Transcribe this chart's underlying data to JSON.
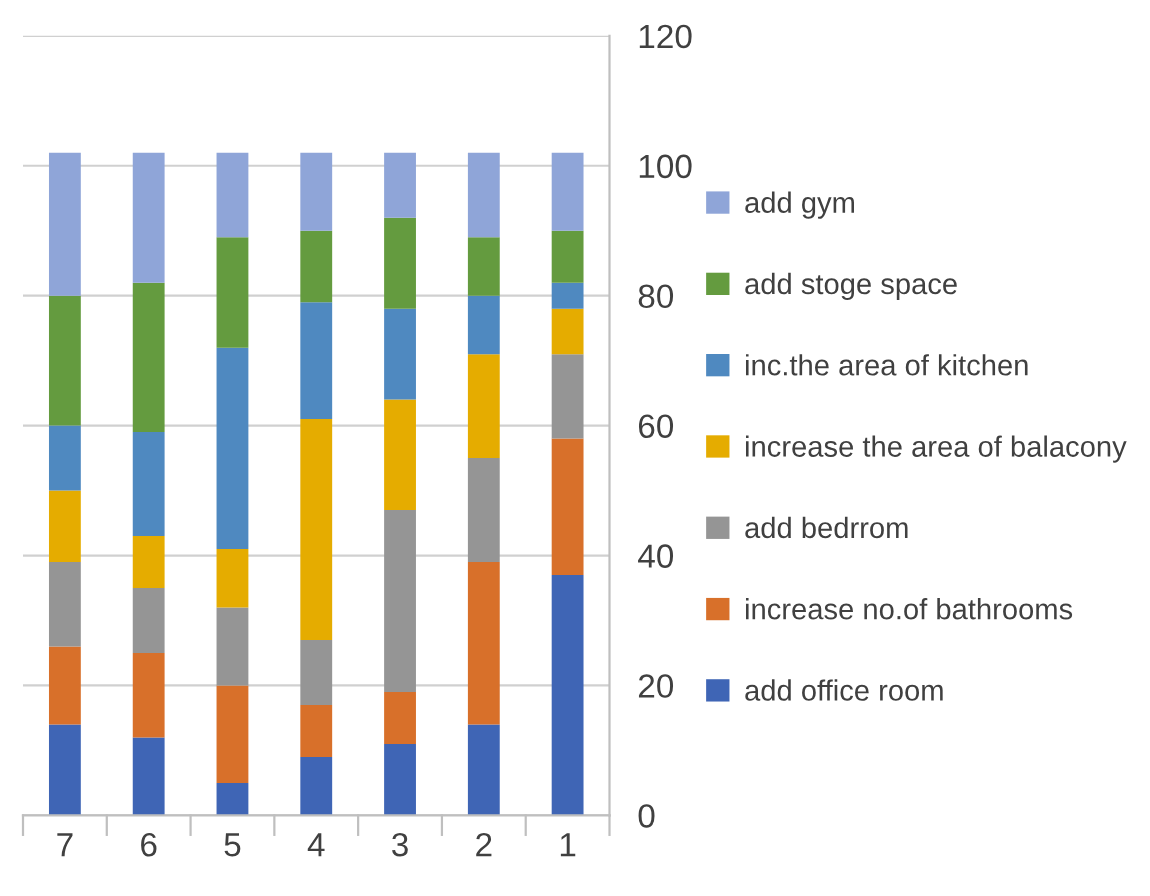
{
  "chart_data": {
    "type": "bar",
    "stacked": true,
    "categories": [
      "7",
      "6",
      "5",
      "4",
      "3",
      "2",
      "1"
    ],
    "series": [
      {
        "name": "add office room",
        "color": "#3f65b5",
        "values": [
          14,
          12,
          5,
          9,
          11,
          14,
          37
        ]
      },
      {
        "name": "increase no.of bathrooms",
        "color": "#d8702a",
        "values": [
          12,
          13,
          15,
          8,
          8,
          25,
          21
        ]
      },
      {
        "name": "add bedrrom",
        "color": "#959595",
        "values": [
          13,
          10,
          12,
          10,
          28,
          16,
          13
        ]
      },
      {
        "name": "increase the area of balacony",
        "color": "#e5ac00",
        "values": [
          11,
          8,
          9,
          34,
          17,
          16,
          7
        ]
      },
      {
        "name": "inc.the area of kitchen",
        "color": "#4f89c0",
        "values": [
          10,
          16,
          31,
          18,
          14,
          9,
          4
        ]
      },
      {
        "name": "add stoge space",
        "color": "#649b3f",
        "values": [
          20,
          23,
          17,
          11,
          14,
          9,
          8
        ]
      },
      {
        "name": "add gym",
        "color": "#8fa5d8",
        "values": [
          22,
          20,
          13,
          12,
          10,
          13,
          12
        ]
      }
    ],
    "ylim": [
      0,
      120
    ],
    "yticks": [
      0,
      20,
      40,
      60,
      80,
      100,
      120
    ],
    "grid": "y",
    "legend": "right"
  }
}
